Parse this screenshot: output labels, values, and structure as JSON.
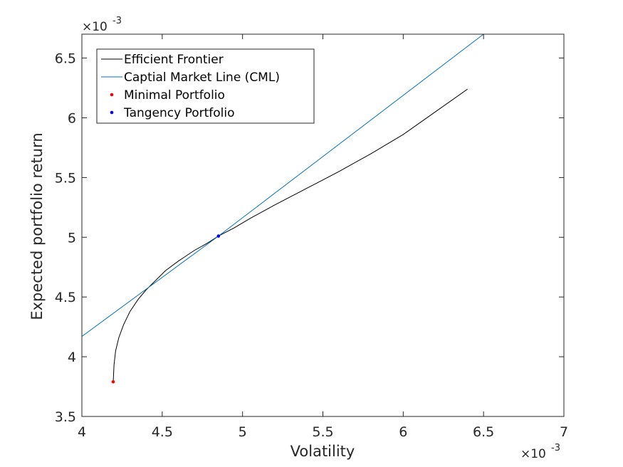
{
  "chart_data": {
    "type": "line",
    "xlabel": "Volatility",
    "ylabel": "Expected portfolio return",
    "x_exponent_label": "×10",
    "x_exponent_power": "-3",
    "y_exponent_label": "×10",
    "y_exponent_power": "-3",
    "scale": 0.001,
    "xlim": [
      4,
      7
    ],
    "ylim": [
      3.5,
      6.7
    ],
    "x_ticks": [
      4,
      4.5,
      5,
      5.5,
      6,
      6.5,
      7
    ],
    "x_tick_labels": [
      "4",
      "4.5",
      "5",
      "5.5",
      "6",
      "6.5",
      "7"
    ],
    "y_ticks": [
      3.5,
      4,
      4.5,
      5,
      5.5,
      6,
      6.5
    ],
    "y_tick_labels": [
      "3.5",
      "4",
      "4.5",
      "5",
      "5.5",
      "6",
      "6.5"
    ],
    "grid": false,
    "legend_position": "top-left",
    "legend": [
      "Efficient Frontier",
      "Captial Market Line (CML)",
      "Minimal Portfolio",
      "Tangency Portfolio"
    ],
    "series": [
      {
        "name": "Efficient Frontier",
        "style": "line",
        "color": "#000000",
        "x": [
          4.195,
          4.2,
          4.21,
          4.23,
          4.26,
          4.3,
          4.35,
          4.4,
          4.46,
          4.52,
          4.6,
          4.7,
          4.78,
          4.85,
          4.95,
          5.05,
          5.2,
          5.4,
          5.6,
          5.8,
          6.0,
          6.2,
          6.4
        ],
        "y": [
          3.79,
          3.93,
          4.05,
          4.16,
          4.27,
          4.38,
          4.48,
          4.56,
          4.64,
          4.72,
          4.8,
          4.89,
          4.95,
          5.01,
          5.08,
          5.16,
          5.27,
          5.41,
          5.55,
          5.7,
          5.86,
          6.05,
          6.24
        ]
      },
      {
        "name": "Captial Market Line (CML)",
        "style": "line",
        "color": "#0072bd",
        "x": [
          4.0,
          4.85,
          6.5
        ],
        "y": [
          4.17,
          5.01,
          6.7
        ]
      },
      {
        "name": "Minimal Portfolio",
        "style": "point",
        "color": "#ff0000",
        "x": [
          4.195
        ],
        "y": [
          3.79
        ]
      },
      {
        "name": "Tangency Portfolio",
        "style": "point",
        "color": "#0000ff",
        "x": [
          4.85
        ],
        "y": [
          5.01
        ]
      }
    ]
  }
}
